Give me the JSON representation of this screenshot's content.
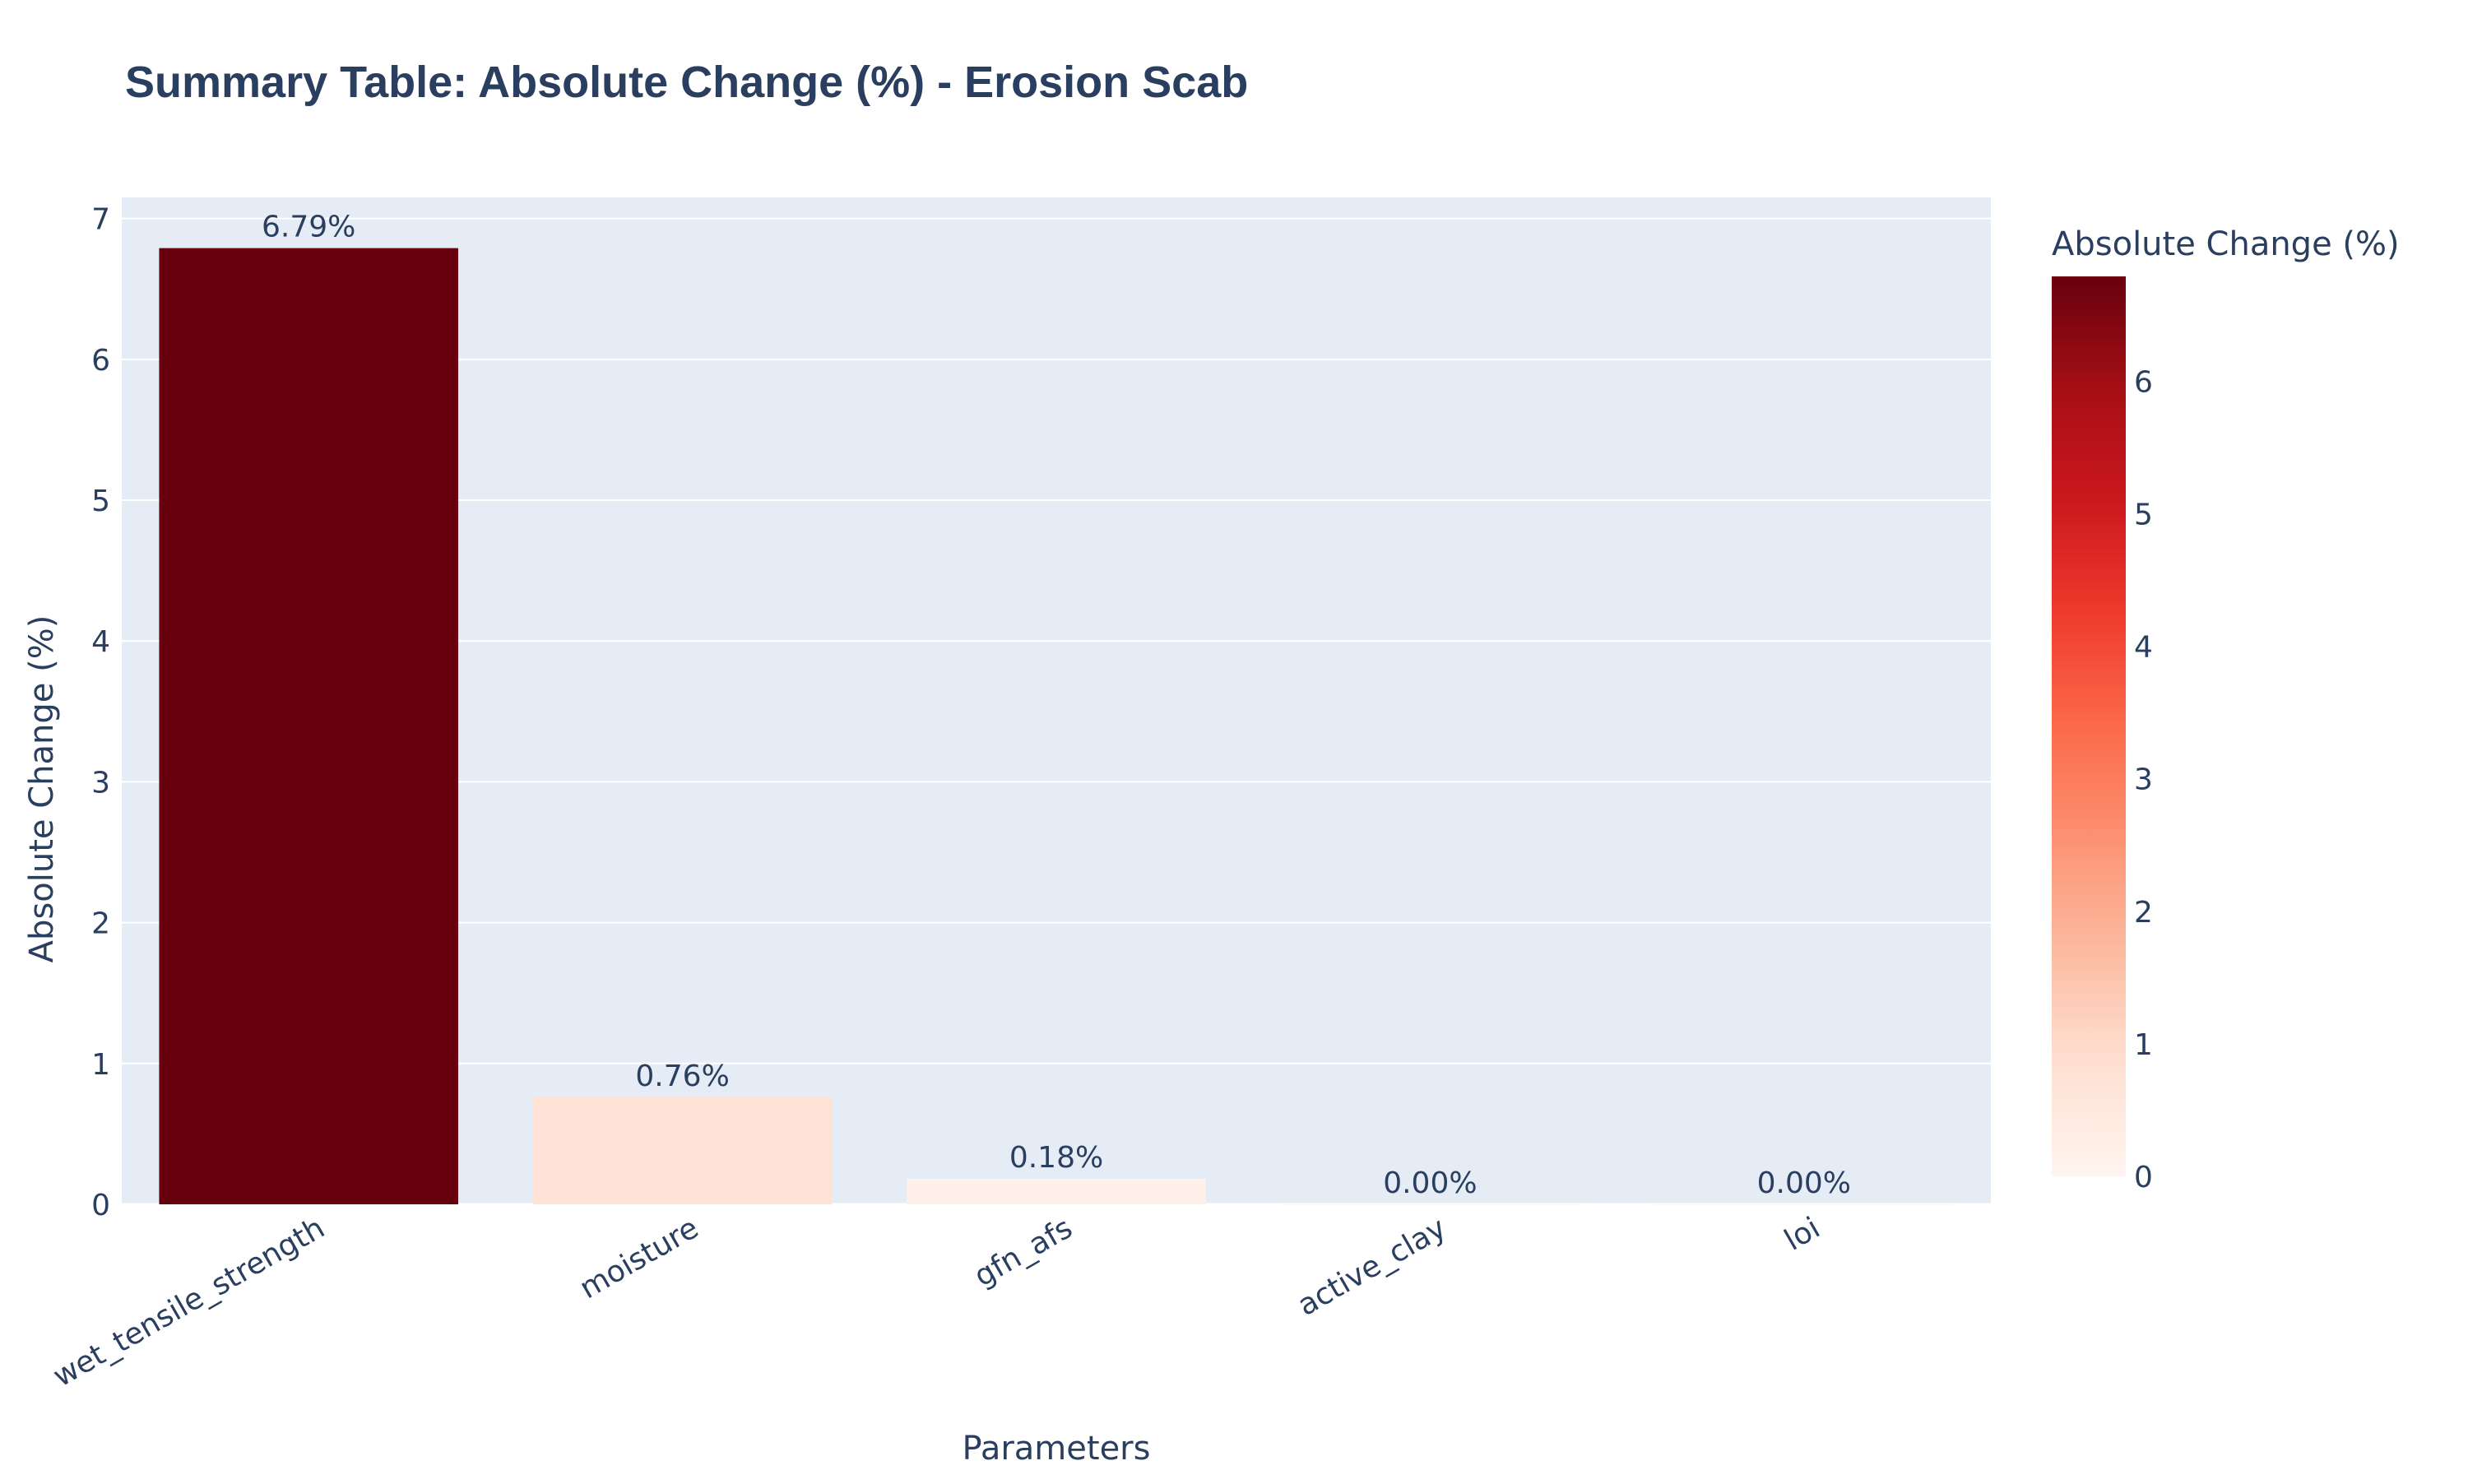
{
  "chart_data": {
    "type": "bar",
    "title": "Summary Table: Absolute Change (%) - Erosion Scab",
    "xlabel": "Parameters",
    "ylabel": "Absolute Change (%)",
    "categories": [
      "wet_tensile_strength",
      "moisture",
      "gfn_afs",
      "active_clay",
      "loi"
    ],
    "values": [
      6.79,
      0.76,
      0.18,
      0.0,
      0.0
    ],
    "data_labels": [
      "6.79%",
      "0.76%",
      "0.18%",
      "0.00%",
      "0.00%"
    ],
    "ylim": [
      0,
      7.15
    ],
    "y_ticks": [
      0,
      1,
      2,
      3,
      4,
      5,
      6,
      7
    ],
    "grid": true,
    "colorscale": {
      "name": "Reds",
      "title": "Absolute Change (%)",
      "range": [
        0,
        6.79
      ],
      "ticks": [
        0,
        1,
        2,
        3,
        4,
        5,
        6
      ],
      "stops": [
        "#fff5f0",
        "#fee0d2",
        "#fcbba1",
        "#fc9272",
        "#fb6a4a",
        "#ef3b2c",
        "#cb181d",
        "#a50f15",
        "#67000d"
      ]
    },
    "colors": {
      "plot_bg": "#e5ecf6",
      "grid": "#ffffff",
      "text": "#2a3f5f"
    }
  }
}
